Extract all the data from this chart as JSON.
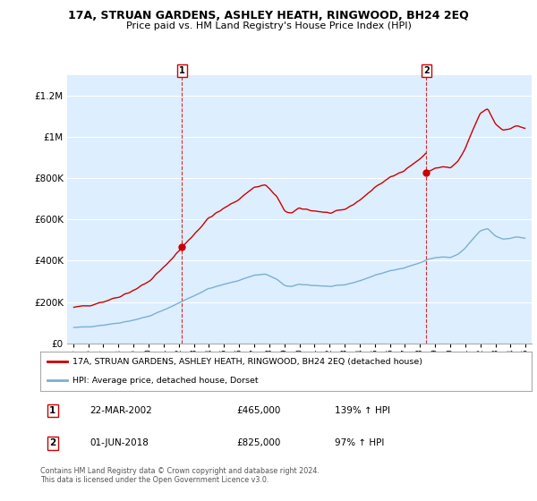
{
  "title": "17A, STRUAN GARDENS, ASHLEY HEATH, RINGWOOD, BH24 2EQ",
  "subtitle": "Price paid vs. HM Land Registry's House Price Index (HPI)",
  "legend_label_red": "17A, STRUAN GARDENS, ASHLEY HEATH, RINGWOOD, BH24 2EQ (detached house)",
  "legend_label_blue": "HPI: Average price, detached house, Dorset",
  "annotation1_date": "22-MAR-2002",
  "annotation1_price": "£465,000",
  "annotation1_hpi": "139% ↑ HPI",
  "annotation2_date": "01-JUN-2018",
  "annotation2_price": "£825,000",
  "annotation2_hpi": "97% ↑ HPI",
  "footer": "Contains HM Land Registry data © Crown copyright and database right 2024.\nThis data is licensed under the Open Government Licence v3.0.",
  "red_color": "#cc0000",
  "blue_color": "#7bafd4",
  "dashed_color": "#cc0000",
  "background_color": "#ffffff",
  "plot_bg_color": "#ddeeff",
  "grid_color": "#ffffff",
  "ylim": [
    0,
    1300000
  ],
  "yticks": [
    0,
    200000,
    400000,
    600000,
    800000,
    1000000,
    1200000
  ],
  "sale1_x": 2002.2192,
  "sale1_y": 465000,
  "sale2_x": 2018.4164,
  "sale2_y": 825000,
  "xtick_years": [
    1995,
    1996,
    1997,
    1998,
    1999,
    2000,
    2001,
    2002,
    2003,
    2004,
    2005,
    2006,
    2007,
    2008,
    2009,
    2010,
    2011,
    2012,
    2013,
    2014,
    2015,
    2016,
    2017,
    2018,
    2019,
    2020,
    2021,
    2022,
    2023,
    2024,
    2025
  ]
}
